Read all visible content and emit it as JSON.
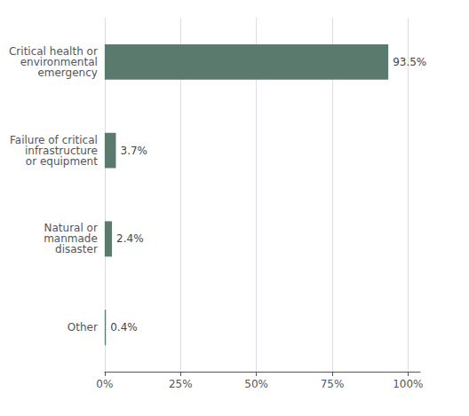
{
  "chart_data": {
    "type": "bar",
    "orientation": "horizontal",
    "categories": [
      "Other",
      "Natural or\nmanmade\ndisaster",
      "Failure of critical\ninfrastructure\nor equipment",
      "Critical health or\nenvironmental\nemergency"
    ],
    "values": [
      0.4,
      2.4,
      3.7,
      93.5
    ],
    "value_labels": [
      "0.4%",
      "2.4%",
      "3.7%",
      "93.5%"
    ],
    "data_labels": true,
    "color": "#5a7a6e",
    "xlim": [
      0,
      104
    ],
    "xticks": [
      {
        "value": 0,
        "label": "0%"
      },
      {
        "value": 25,
        "label": "25%"
      },
      {
        "value": 50,
        "label": "50%"
      },
      {
        "value": 75,
        "label": "75%"
      },
      {
        "value": 100,
        "label": "100%"
      }
    ],
    "grid": true
  }
}
